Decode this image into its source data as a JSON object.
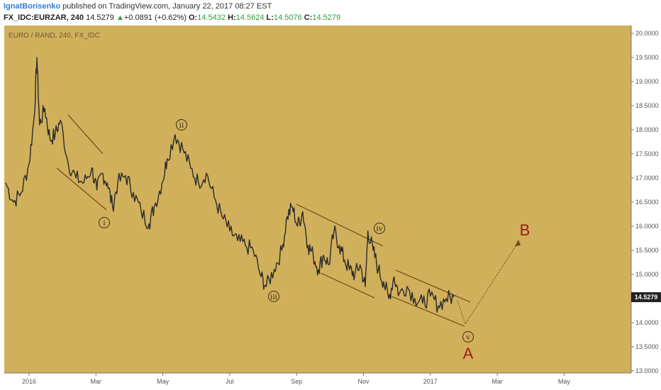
{
  "header": {
    "user": "IgnatBorisenko",
    "published_text": " published on TradingView.com, January 22, 2017 08:27 EST",
    "symbol": "FX_IDC:EURZAR, 240",
    "last": "14.5279",
    "change_arrow": "▲",
    "change": "+0.0891 (+0.62%)",
    "o_label": "O:",
    "o": "14.5432",
    "h_label": "H:",
    "h": "14.5624",
    "l_label": "L:",
    "l": "14.5076",
    "c_label": "C:",
    "c": "14.5279"
  },
  "chart_data": {
    "type": "line",
    "title": "EURO / RAND, 240, FX_IDC",
    "x_ticks": [
      "2016",
      "Mar",
      "May",
      "Jul",
      "Sep",
      "Nov",
      "2017",
      "Mar",
      "May"
    ],
    "ylim": [
      13.0,
      20.0
    ],
    "y_ticks": [
      "13.0000",
      "13.5000",
      "14.0000",
      "14.5000",
      "15.0000",
      "15.5000",
      "16.0000",
      "16.5000",
      "17.0000",
      "17.5000",
      "18.0000",
      "18.5000",
      "19.0000",
      "19.5000",
      "20.0000"
    ],
    "last_price": "14.5279",
    "series": [
      {
        "values": [
          {
            "x": 0,
            "y": 16.9
          },
          {
            "x": 3,
            "y": 16.5
          },
          {
            "x": 6,
            "y": 16.7
          },
          {
            "x": 9,
            "y": 17.3
          },
          {
            "x": 11,
            "y": 18.3
          },
          {
            "x": 12,
            "y": 19.5
          },
          {
            "x": 13,
            "y": 18.1
          },
          {
            "x": 15,
            "y": 18.45
          },
          {
            "x": 17,
            "y": 17.8
          },
          {
            "x": 19,
            "y": 17.9
          },
          {
            "x": 21,
            "y": 18.2
          },
          {
            "x": 24,
            "y": 17.3
          },
          {
            "x": 27,
            "y": 17.0
          },
          {
            "x": 30,
            "y": 16.9
          },
          {
            "x": 33,
            "y": 17.2
          },
          {
            "x": 35,
            "y": 16.75
          },
          {
            "x": 37,
            "y": 17.1
          },
          {
            "x": 39,
            "y": 16.9
          },
          {
            "x": 41,
            "y": 16.4
          },
          {
            "x": 43,
            "y": 16.9
          },
          {
            "x": 46,
            "y": 17.05
          },
          {
            "x": 49,
            "y": 16.7
          },
          {
            "x": 52,
            "y": 16.3
          },
          {
            "x": 55,
            "y": 16.05
          },
          {
            "x": 57,
            "y": 16.4
          },
          {
            "x": 60,
            "y": 16.9
          },
          {
            "x": 62,
            "y": 17.4
          },
          {
            "x": 65,
            "y": 17.9
          },
          {
            "x": 68,
            "y": 17.6
          },
          {
            "x": 71,
            "y": 17.2
          },
          {
            "x": 74,
            "y": 16.9
          },
          {
            "x": 77,
            "y": 17.1
          },
          {
            "x": 80,
            "y": 16.6
          },
          {
            "x": 83,
            "y": 16.2
          },
          {
            "x": 86,
            "y": 15.9
          },
          {
            "x": 89,
            "y": 15.7
          },
          {
            "x": 92,
            "y": 15.6
          },
          {
            "x": 95,
            "y": 15.5
          },
          {
            "x": 98,
            "y": 14.95
          },
          {
            "x": 100,
            "y": 14.75
          },
          {
            "x": 103,
            "y": 15.1
          },
          {
            "x": 106,
            "y": 15.5
          },
          {
            "x": 108,
            "y": 16.2
          },
          {
            "x": 110,
            "y": 16.4
          },
          {
            "x": 112,
            "y": 16.0
          },
          {
            "x": 114,
            "y": 16.3
          },
          {
            "x": 116,
            "y": 15.6
          },
          {
            "x": 118,
            "y": 15.4
          },
          {
            "x": 120,
            "y": 15.1
          },
          {
            "x": 122,
            "y": 15.4
          },
          {
            "x": 124,
            "y": 15.2
          },
          {
            "x": 126,
            "y": 15.9
          },
          {
            "x": 128,
            "y": 15.6
          },
          {
            "x": 130,
            "y": 15.3
          },
          {
            "x": 132,
            "y": 15.1
          },
          {
            "x": 134,
            "y": 15.0
          },
          {
            "x": 136,
            "y": 15.2
          },
          {
            "x": 138,
            "y": 14.75
          },
          {
            "x": 139,
            "y": 15.9
          },
          {
            "x": 141,
            "y": 15.5
          },
          {
            "x": 143,
            "y": 15.1
          },
          {
            "x": 145,
            "y": 14.85
          },
          {
            "x": 147,
            "y": 14.5
          },
          {
            "x": 149,
            "y": 14.95
          },
          {
            "x": 151,
            "y": 14.6
          },
          {
            "x": 154,
            "y": 14.75
          },
          {
            "x": 157,
            "y": 14.5
          },
          {
            "x": 160,
            "y": 14.4
          },
          {
            "x": 163,
            "y": 14.55
          },
          {
            "x": 166,
            "y": 14.35
          },
          {
            "x": 169,
            "y": 14.5
          },
          {
            "x": 172,
            "y": 14.53
          }
        ]
      }
    ],
    "annotations": [
      "i",
      "ii",
      "iii",
      "iv",
      "v",
      "A",
      "B"
    ]
  }
}
